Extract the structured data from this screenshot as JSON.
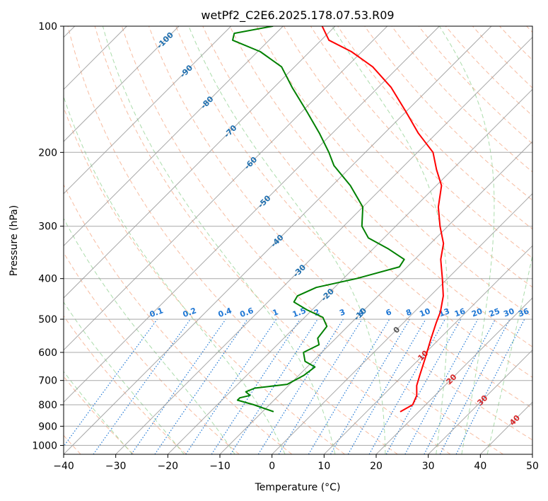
{
  "chart_data": {
    "type": "line",
    "subtype": "skew-T log-p diagram",
    "title": "wetPf2_C2E6.2025.178.07.53.R09",
    "xlabel": "Temperature (°C)",
    "ylabel": "Pressure (hPa)",
    "xlim": [
      -40,
      50
    ],
    "ylim": [
      1050,
      100
    ],
    "y_scale": "log",
    "x_ticks": [
      "−40",
      "−30",
      "−20",
      "−10",
      "0",
      "10",
      "20",
      "30",
      "40",
      "50"
    ],
    "y_ticks": [
      "100",
      "200",
      "300",
      "400",
      "500",
      "600",
      "700",
      "800",
      "900",
      "1000"
    ],
    "grid": true,
    "series": [
      {
        "color": "#ff0000",
        "values": [
          [
            830,
            16.5
          ],
          [
            800,
            17.5
          ],
          [
            760,
            16.5
          ],
          [
            720,
            14.6
          ],
          [
            680,
            13.2
          ],
          [
            620,
            11.0
          ],
          [
            560,
            8.5
          ],
          [
            510,
            6.3
          ],
          [
            480,
            5.0
          ],
          [
            440,
            2.5
          ],
          [
            400,
            -1.0
          ],
          [
            360,
            -5.0
          ],
          [
            330,
            -7.5
          ],
          [
            300,
            -11.5
          ],
          [
            270,
            -15.5
          ],
          [
            240,
            -19.0
          ],
          [
            220,
            -23.0
          ],
          [
            200,
            -27.0
          ],
          [
            180,
            -33.5
          ],
          [
            160,
            -40.0
          ],
          [
            140,
            -47.5
          ],
          [
            125,
            -55.0
          ],
          [
            115,
            -62.0
          ],
          [
            108,
            -68.5
          ],
          [
            100,
            -72.5
          ]
        ]
      },
      {
        "color": "#008000",
        "values": [
          [
            830,
            -8.0
          ],
          [
            800,
            -13.0
          ],
          [
            780,
            -17.0
          ],
          [
            770,
            -17.0
          ],
          [
            760,
            -15.5
          ],
          [
            745,
            -17.0
          ],
          [
            730,
            -16.0
          ],
          [
            715,
            -10.5
          ],
          [
            680,
            -9.0
          ],
          [
            650,
            -8.5
          ],
          [
            630,
            -11.5
          ],
          [
            600,
            -13.5
          ],
          [
            575,
            -12.0
          ],
          [
            555,
            -13.5
          ],
          [
            520,
            -14.0
          ],
          [
            495,
            -16.5
          ],
          [
            475,
            -21.0
          ],
          [
            455,
            -25.0
          ],
          [
            440,
            -25.5
          ],
          [
            420,
            -23.5
          ],
          [
            400,
            -17.5
          ],
          [
            375,
            -11.5
          ],
          [
            360,
            -12.0
          ],
          [
            340,
            -17.0
          ],
          [
            320,
            -23.0
          ],
          [
            300,
            -26.5
          ],
          [
            270,
            -30.0
          ],
          [
            240,
            -36.5
          ],
          [
            215,
            -43.5
          ],
          [
            200,
            -47.0
          ],
          [
            180,
            -52.5
          ],
          [
            160,
            -59.0
          ],
          [
            140,
            -66.5
          ],
          [
            125,
            -72.5
          ],
          [
            115,
            -79.5
          ],
          [
            108,
            -87.0
          ],
          [
            104,
            -88.0
          ],
          [
            100,
            -82.0
          ]
        ]
      }
    ],
    "dry_adiabats_C": [
      -50,
      -40,
      -30,
      -20,
      -10,
      0,
      10,
      20,
      30,
      40,
      50,
      60,
      70,
      80,
      90,
      100,
      110,
      120,
      130,
      140,
      150,
      160,
      170,
      180,
      190,
      200,
      210,
      220
    ],
    "moist_adiabats_C": [
      -30,
      -20,
      -10,
      0,
      10,
      20,
      30,
      35,
      40
    ],
    "mixing_ratio_labels": [
      "0.1",
      "0.2",
      "0.4",
      "0.6",
      "1",
      "1.5",
      "2",
      "3",
      "4",
      "6",
      "8",
      "10",
      "13",
      "16",
      "20",
      "25",
      "30",
      "36"
    ],
    "isotherm_labels_blue": [
      "-100",
      "-90",
      "-80",
      "-70",
      "-60",
      "-50",
      "-40",
      "-30",
      "-20",
      "-10"
    ],
    "isotherm_labels_red": [
      "10",
      "20",
      "30",
      "40"
    ],
    "isotherm_label_zero": "0",
    "colors": {
      "temperature": "#ff0000",
      "dewpoint": "#008000",
      "isotherm": "#999999",
      "dry_adiabat": "#f4a582",
      "moist_adiabat": "#8fd08f",
      "mixing_ratio": "#1f77d4",
      "blue_label": "#1f6faf",
      "red_label": "#d62728",
      "zero_label": "#555555"
    }
  }
}
